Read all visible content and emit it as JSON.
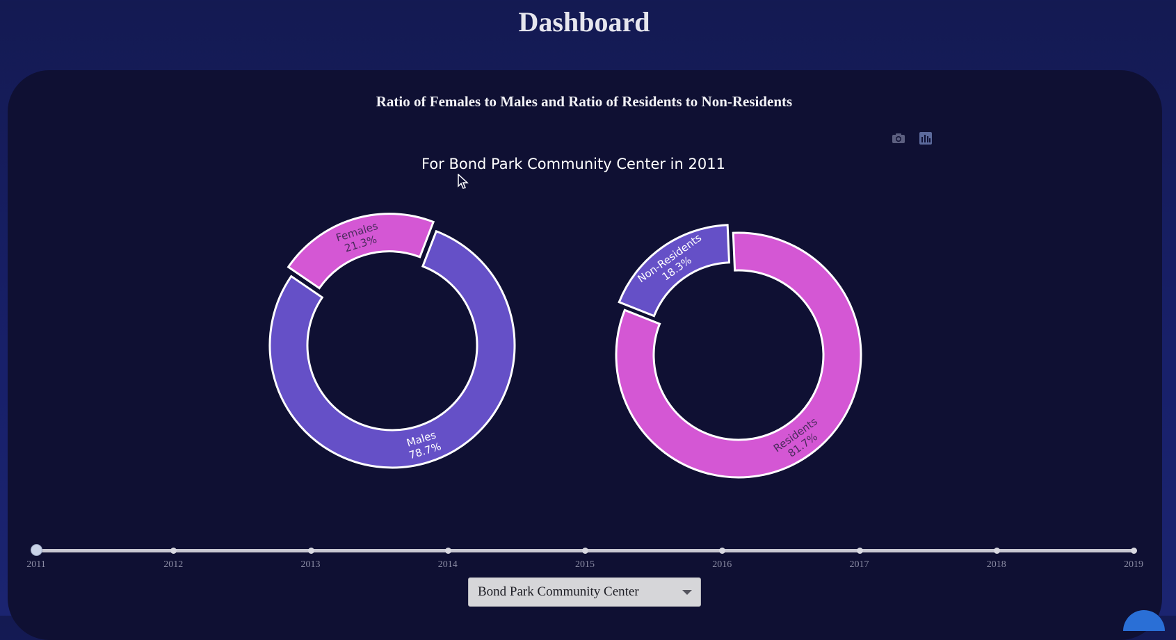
{
  "header": {
    "title": "Dashboard"
  },
  "chart_title": "Ratio of Females to Males and Ratio of Residents to Non-Residents",
  "subtitle": "For Bond Park Community Center in 2011",
  "modebar": {
    "icons": [
      "camera-icon",
      "bar-chart-icon"
    ]
  },
  "colors": {
    "purple": "#6550c7",
    "magenta": "#d457d4",
    "background": "#0f1033"
  },
  "chart_data": [
    {
      "type": "pie",
      "hole": true,
      "labels": [
        "Females",
        "Males"
      ],
      "values": [
        21.3,
        78.7
      ],
      "text": [
        "21.3%",
        "78.7%"
      ],
      "colors": [
        "#d457d4",
        "#6550c7"
      ],
      "pulled": [
        "Females"
      ]
    },
    {
      "type": "pie",
      "hole": true,
      "labels": [
        "Non-Residents",
        "Residents"
      ],
      "values": [
        18.3,
        81.7
      ],
      "text": [
        "18.3%",
        "81.7%"
      ],
      "colors": [
        "#6550c7",
        "#d457d4"
      ],
      "pulled": [
        "Non-Residents"
      ]
    }
  ],
  "slider": {
    "years": [
      "2011",
      "2012",
      "2013",
      "2014",
      "2015",
      "2016",
      "2017",
      "2018",
      "2019"
    ],
    "selected": "2011"
  },
  "dropdown": {
    "value": "Bond Park Community Center"
  }
}
